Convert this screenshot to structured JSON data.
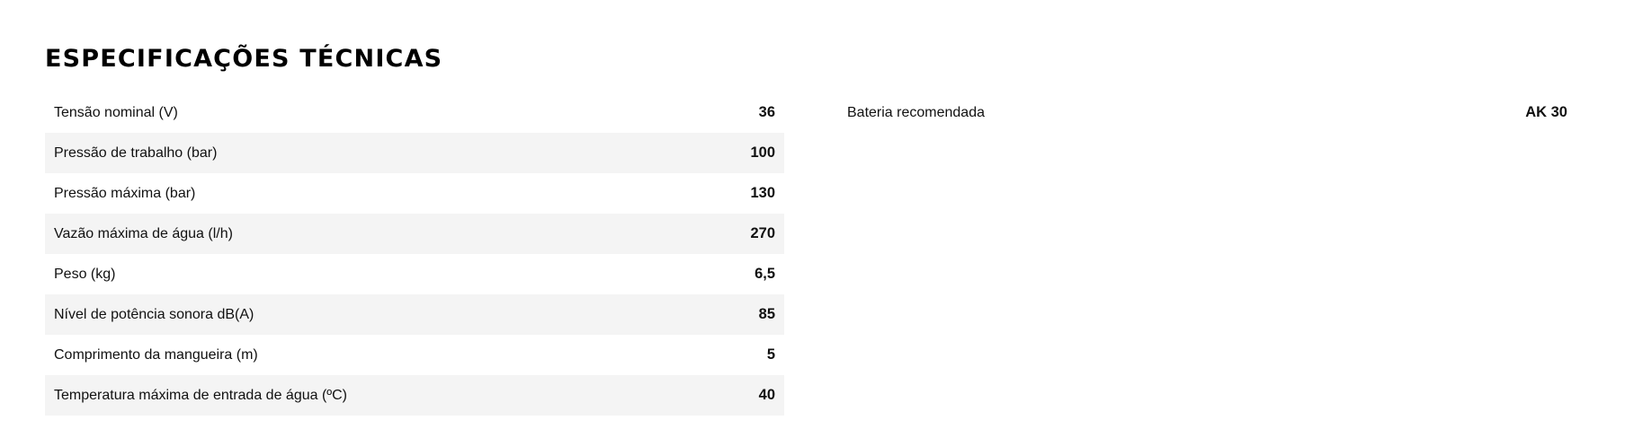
{
  "title": "ESPECIFICAÇÕES TÉCNICAS",
  "left_specs": [
    {
      "label": "Tensão nominal (V)",
      "value": "36"
    },
    {
      "label": "Pressão de trabalho (bar)",
      "value": "100"
    },
    {
      "label": "Pressão máxima (bar)",
      "value": "130"
    },
    {
      "label": "Vazão máxima de água (l/h)",
      "value": "270"
    },
    {
      "label": "Peso (kg)",
      "value": "6,5"
    },
    {
      "label": "Nível de potência sonora dB(A)",
      "value": "85"
    },
    {
      "label": "Comprimento da mangueira (m)",
      "value": "5"
    },
    {
      "label": "Temperatura máxima de entrada de água (ºC)",
      "value": "40"
    }
  ],
  "right_specs": [
    {
      "label": "Bateria recomendada",
      "value": "AK 30"
    }
  ]
}
